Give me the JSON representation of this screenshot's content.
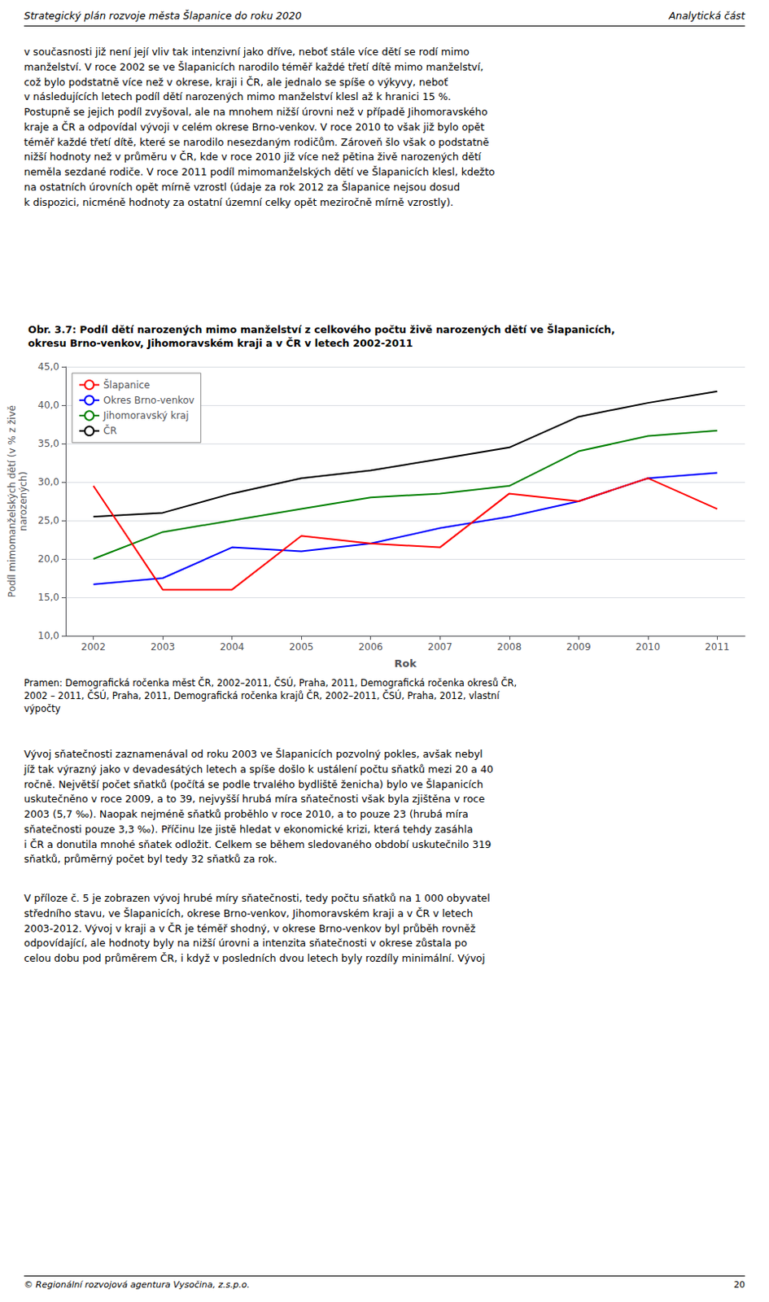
{
  "chart_data": {
    "type": "line",
    "title": "Obr. 3.7: Podíl dětí narozených mimo manželství z celkového počtu živě narozených dětí ve Šlapanicích,\nokresu Brno-venkov, Jihomoravském kraji a v ČR v letech 2002-2011",
    "x_label": "Rok",
    "y_label": "Podíl mimomanželských dětí (v % z živě\nnarozených)",
    "x": [
      2002,
      2003,
      2004,
      2005,
      2006,
      2007,
      2008,
      2009,
      2010,
      2011
    ],
    "series": [
      {
        "name": "Šlapanice",
        "color": "#ff0000",
        "values": [
          29.5,
          16.0,
          16.0,
          23.0,
          22.0,
          21.5,
          28.5,
          27.5,
          30.5,
          26.5
        ]
      },
      {
        "name": "Okres Brno-venkov",
        "color": "#0000ff",
        "values": [
          16.7,
          17.5,
          21.5,
          21.0,
          22.0,
          24.0,
          25.5,
          27.5,
          30.5,
          31.2
        ]
      },
      {
        "name": "Jihomoravský kraj",
        "color": "#008000",
        "values": [
          20.0,
          23.5,
          25.0,
          26.5,
          28.0,
          28.5,
          29.5,
          34.0,
          36.0,
          36.7
        ]
      },
      {
        "name": "ČR",
        "color": "#000000",
        "values": [
          25.5,
          26.0,
          28.5,
          30.5,
          31.5,
          33.0,
          34.5,
          38.5,
          40.3,
          41.8
        ]
      }
    ],
    "xlim": [
      2001.6,
      2011.4
    ],
    "xticks": [
      2002,
      2003,
      2004,
      2005,
      2006,
      2007,
      2008,
      2009,
      2010,
      2011
    ],
    "ylim": [
      10.0,
      45.0
    ],
    "yticks": [
      {
        "value": 10.0,
        "label": "10,0"
      },
      {
        "value": 15.0,
        "label": "15,0"
      },
      {
        "value": 20.0,
        "label": "20,0"
      },
      {
        "value": 25.0,
        "label": "25,0"
      },
      {
        "value": 30.0,
        "label": "30,0"
      },
      {
        "value": 35.0,
        "label": "35,0"
      },
      {
        "value": 40.0,
        "label": "40,0"
      },
      {
        "value": 45.0,
        "label": "45,0"
      }
    ],
    "grid": true,
    "legend": "upper-left",
    "annotations": [
      "Strategický plán rozvoje města Šlapanice do roku 2020",
      "Analytická část",
      "v současnosti již není její vliv tak intenzivní jako dříve, neboť stále více dětí se rodí mimo\nmanželství. V roce 2002 se ve Šlapanicích narodilo téměř každé třetí dítě mimo manželství,\ncož bylo podstatně více než v okrese, kraji i ČR, ale jednalo se spíše o výkyvy, neboť\nv následujících letech podíl dětí narozených mimo manželství klesl až k hranici 15 %.\nPostupně se jejich podíl zvyšoval, ale na mnohem nižší úrovni než v případě Jihomoravského\nkraje a ČR a odpovídal vývoji v celém okrese Brno-venkov. V roce 2010 to však již bylo opět\ntéměř každé třetí dítě, které se narodilo nesezdaným rodičům. Zároveň šlo však o podstatně\nnižší hodnoty než v průměru v ČR, kde v roce 2010 již více než pětina živě narozených dětí\nneměla sezdané rodiče. V roce 2011 podíl mimomanželských dětí ve Šlapanicích klesl, kdežto\nna ostatních úrovních opět mírně vzrostl (údaje za rok 2012 za Šlapanice nejsou dosud\nk dispozici, nicméně hodnoty za ostatní územní celky opět meziročně mírně vzrostly).",
      "Pramen: Demografická ročenka měst ČR, 2002–2011, ČSÚ, Praha, 2011, Demografická ročenka okresů ČR,\n2002 – 2011, ČSÚ, Praha, 2011, Demografická ročenka krajů ČR, 2002–2011, ČSÚ, Praha, 2012, vlastní\nvýpočty",
      "Vývoj sňatečnosti zaznamenával od roku 2003 ve Šlapanicích pozvolný pokles, avšak nebyl\njíž tak výrazný jako v devadesátých letech a spíše došlo k ustálení počtu sňatků mezi 20 a 40\nročně. Největší počet sňatků (počítá se podle trvalého bydliště ženicha) bylo ve Šlapanicích\nuskutečněno v roce 2009, a to 39, nejvyšší hrubá míra sňatečnosti však byla zjištěna v roce\n2003 (5,7 ‰). Naopak nejméně sňatků proběhlo v roce 2010, a to pouze 23 (hrubá míra\nsňatečnosti pouze 3,3 ‰). Příčinu lze jistě hledat v ekonomické krizi, která tehdy zasáhla\ni ČR a donutila mnohé sňatek odložit. Celkem se během sledovaného období uskutečnilo 319\nsňatků, průměrný počet byl tedy 32 sňatků za rok.",
      "V příloze č. 5 je zobrazen vývoj hrubé míry sňatečnosti, tedy počtu sňatků na 1 000 obyvatel\nstředního stavu, ve Šlapanicích, okrese Brno-venkov, Jihomoravském kraji a v ČR v letech\n2003-2012. Vývoj v kraji a v ČR je téměř shodný, v okrese Brno-venkov byl průběh rovněž\nodpovídající, ale hodnoty byly na nižší úrovni a intenzita sňatečnosti v okrese zůstala po\ncelou dobu pod průměrem ČR, i když v posledních dvou letech byly rozdíly minimální. Vývoj",
      "© Regionální rozvojová agentura Vysočina, z.s.p.o.",
      "20"
    ]
  }
}
